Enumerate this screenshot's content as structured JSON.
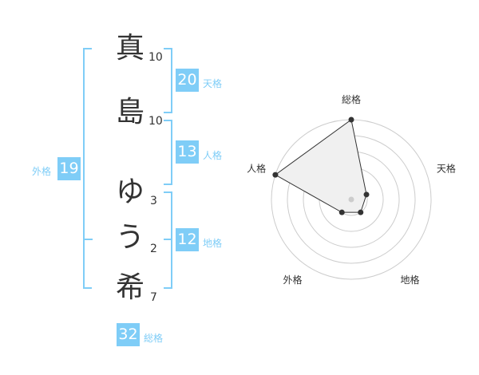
{
  "name": {
    "chars": [
      {
        "char": "真",
        "strokes": "10"
      },
      {
        "char": "島",
        "strokes": "10"
      },
      {
        "char": "ゆ",
        "strokes": "3"
      },
      {
        "char": "う",
        "strokes": "2"
      },
      {
        "char": "希",
        "strokes": "7"
      }
    ]
  },
  "fortunes": {
    "tenkaku": {
      "label": "天格",
      "value": "20"
    },
    "jinkaku": {
      "label": "人格",
      "value": "13"
    },
    "chikaku": {
      "label": "地格",
      "value": "12"
    },
    "gaikaku": {
      "label": "外格",
      "value": "19"
    },
    "soukaku": {
      "label": "総格",
      "value": "32"
    }
  },
  "colors": {
    "accent": "#7fcdf7",
    "text": "#333333",
    "radar_fill": "#f0f0f0"
  },
  "chart_data": {
    "type": "radar",
    "axes": [
      "総格",
      "天格",
      "地格",
      "外格",
      "人格"
    ],
    "values": [
      5,
      1,
      1,
      1,
      5
    ],
    "range": [
      0,
      5
    ],
    "rings": 5
  }
}
